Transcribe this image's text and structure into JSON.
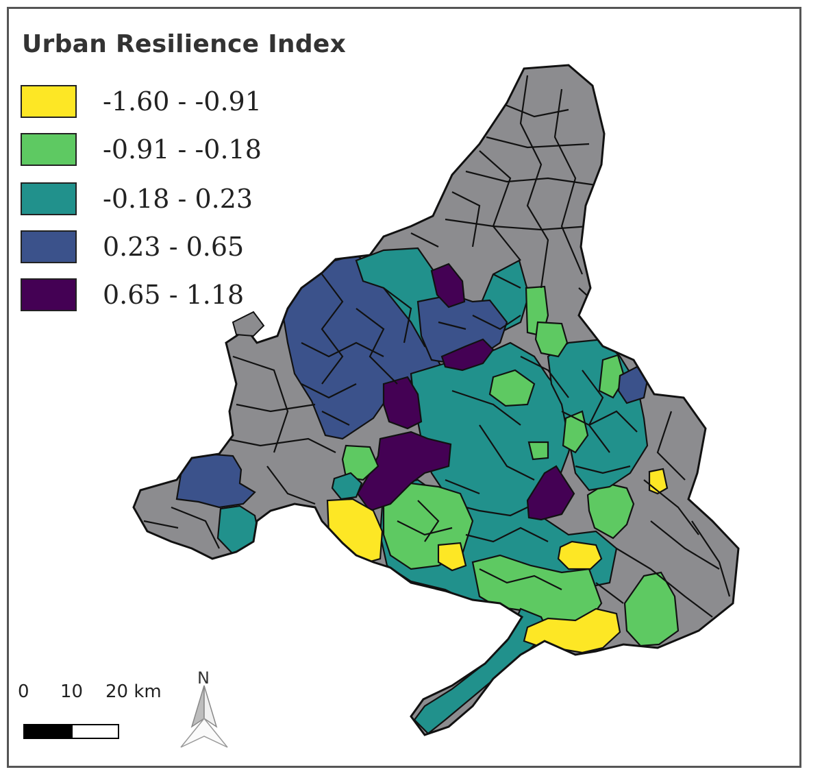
{
  "legend": {
    "title": "Urban Resilience Index",
    "classes": [
      {
        "label": "-1.60 - -0.91",
        "color": "#fde725"
      },
      {
        "label": "-0.91 - -0.18",
        "color": "#5ec962"
      },
      {
        "label": "-0.18 - 0.23",
        "color": "#21918c"
      },
      {
        "label": "0.23 - 0.65",
        "color": "#3b528b"
      },
      {
        "label": "0.65 - 1.18",
        "color": "#440154"
      }
    ]
  },
  "no_data_color": "#8c8c8f",
  "scale": {
    "tick_0": "0",
    "tick_1": "10",
    "tick_2": "20 km"
  },
  "north_arrow": {
    "letter": "N"
  }
}
